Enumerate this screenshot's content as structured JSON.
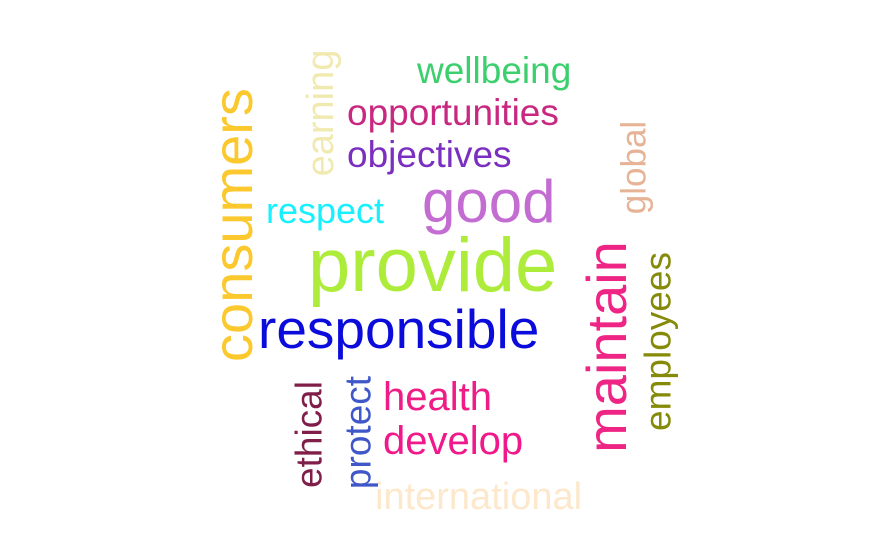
{
  "words": [
    {
      "text": "wellbeing",
      "color": "#3ccf6e"
    },
    {
      "text": "opportunities",
      "color": "#c8287f"
    },
    {
      "text": "objectives",
      "color": "#7b2fc0"
    },
    {
      "text": "good",
      "color": "#c36cd1"
    },
    {
      "text": "respect",
      "color": "#19f0ff"
    },
    {
      "text": "provide",
      "color": "#aeec3c"
    },
    {
      "text": "responsible",
      "color": "#0b0bdc"
    },
    {
      "text": "health",
      "color": "#ef1c86"
    },
    {
      "text": "develop",
      "color": "#f0188a"
    },
    {
      "text": "international",
      "color": "#fde8cc"
    },
    {
      "text": "consumers",
      "color": "#fbc82d"
    },
    {
      "text": "earning",
      "color": "#f1eab0"
    },
    {
      "text": "global",
      "color": "#e7b396"
    },
    {
      "text": "maintain",
      "color": "#ef2586"
    },
    {
      "text": "employees",
      "color": "#868a09"
    },
    {
      "text": "ethical",
      "color": "#801e4a"
    },
    {
      "text": "protect",
      "color": "#3f57c8"
    }
  ]
}
